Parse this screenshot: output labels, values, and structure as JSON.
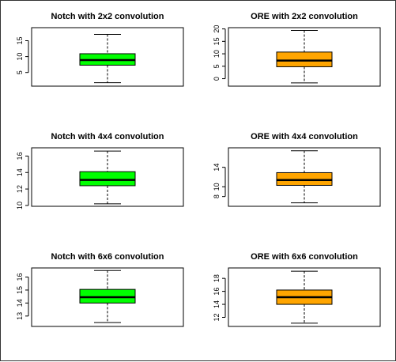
{
  "chart_data": [
    {
      "type": "boxplot",
      "title": "Notch with 2x2 convolution",
      "fill_color": "#00ff00",
      "yticks": [
        5,
        10,
        15
      ],
      "ylim": [
        0.7,
        19.1
      ],
      "whisker_low": 1.8,
      "q1": 7.3,
      "median": 8.9,
      "q3": 10.9,
      "whisker_high": 17.0
    },
    {
      "type": "boxplot",
      "title": "ORE with 2x2 convolution",
      "fill_color": "#ffa500",
      "yticks": [
        0,
        5,
        10,
        15,
        20
      ],
      "ylim": [
        -3.0,
        20.5
      ],
      "whisker_low": -1.7,
      "q1": 4.8,
      "median": 7.3,
      "q3": 10.7,
      "whisker_high": 19.4
    },
    {
      "type": "boxplot",
      "title": "Notch with 4x4 convolution",
      "fill_color": "#00ff00",
      "yticks": [
        10,
        12,
        14,
        16
      ],
      "ylim": [
        9.9,
        17.0
      ],
      "whisker_low": 10.2,
      "q1": 12.4,
      "median": 13.1,
      "q3": 14.1,
      "whisker_high": 16.6
    },
    {
      "type": "boxplot",
      "title": "ORE with 4x4 convolution",
      "fill_color": "#ffa500",
      "yticks": [
        8,
        10,
        14
      ],
      "ylim": [
        6.0,
        18.0
      ],
      "whisker_low": 6.7,
      "q1": 10.3,
      "median": 11.4,
      "q3": 12.9,
      "whisker_high": 17.4
    },
    {
      "type": "boxplot",
      "title": "Notch with 6x6 convolution",
      "fill_color": "#00ff00",
      "yticks": [
        13,
        14,
        15,
        16
      ],
      "ylim": [
        12.2,
        16.7
      ],
      "whisker_low": 12.5,
      "q1": 14.0,
      "median": 14.45,
      "q3": 15.05,
      "whisker_high": 16.5
    },
    {
      "type": "boxplot",
      "title": "ORE with 6x6 convolution",
      "fill_color": "#ffa500",
      "yticks": [
        12,
        14,
        16,
        18
      ],
      "ylim": [
        10.6,
        19.6
      ],
      "whisker_low": 11.1,
      "q1": 14.0,
      "median": 15.1,
      "q3": 16.2,
      "whisker_high": 19.1
    }
  ]
}
